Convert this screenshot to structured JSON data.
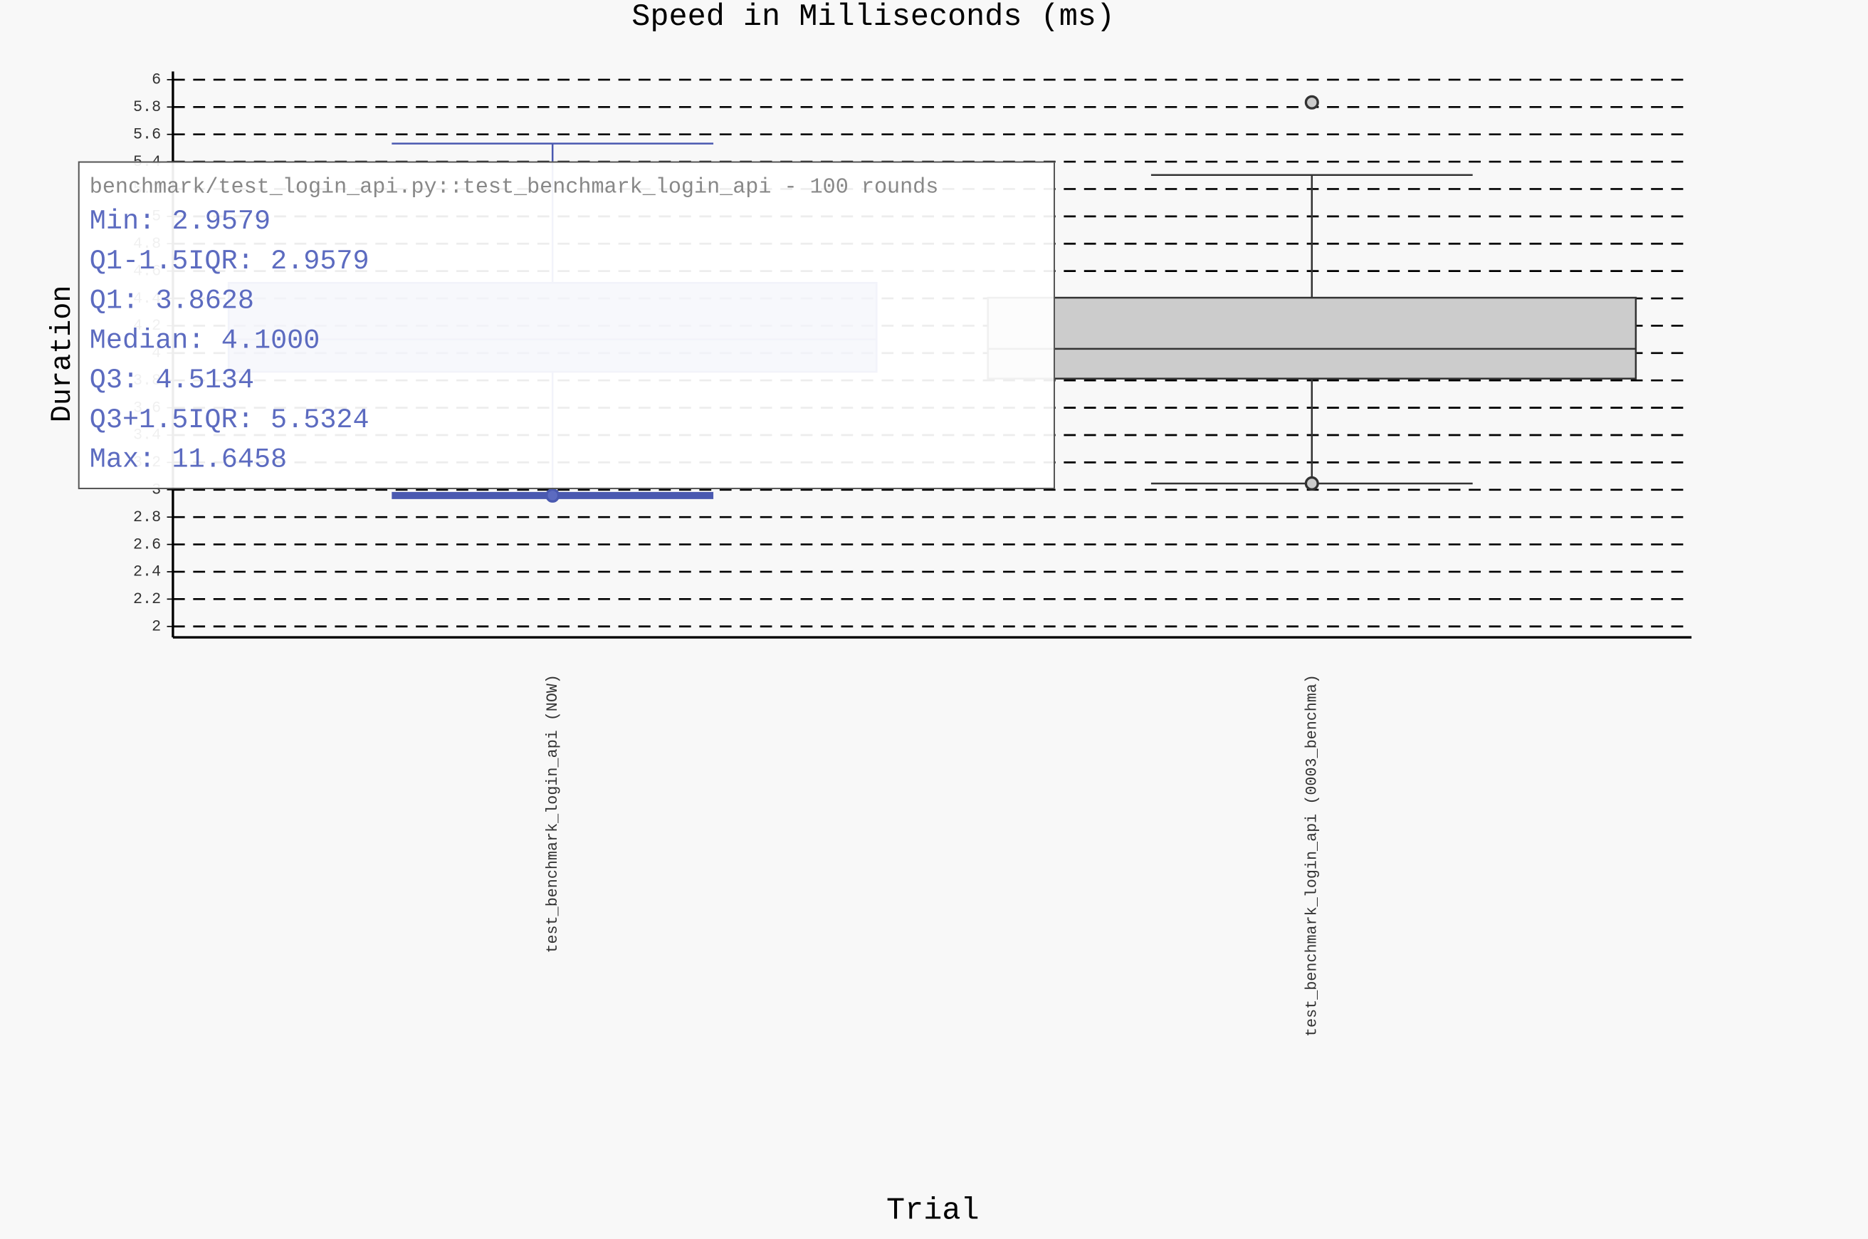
{
  "chart_data": {
    "type": "box",
    "title": "Speed in Milliseconds (ms)",
    "x_title": "Trial",
    "y_title": "Duration",
    "categories": [
      "test_benchmark_login_api (NOW)",
      "test_benchmark_login_api (0003_benchma)"
    ],
    "stat_names": [
      "Min:",
      "Q1-1.5IQR:",
      "Q1:",
      "Median:",
      "Q3:",
      "Q3+1.5IQR:",
      "Max:"
    ],
    "series": [
      {
        "name": "test_benchmark_login_api (NOW)",
        "color": "#5c6bc0",
        "values": [
          2.9579,
          2.9579,
          3.8628,
          4.1,
          4.5134,
          5.5324,
          11.6458
        ],
        "value_labels": [
          "2.9579",
          "2.9579",
          "3.8628",
          "4.1000",
          "4.5134",
          "5.5324",
          "11.6458"
        ]
      },
      {
        "name": "test_benchmark_login_api (0003_benchma)",
        "color": "#cccccc",
        "values": [
          3.046,
          3.046,
          3.813,
          4.031,
          4.405,
          5.303,
          5.834
        ]
      }
    ],
    "tooltip_title": "benchmark/test_login_api.py::test_benchmark_login_api - 100 rounds",
    "ylim": [
      1.92,
      6.06
    ],
    "yticks": [
      2,
      2.2,
      2.4,
      2.6,
      2.8,
      3,
      3.2,
      3.4,
      3.6,
      3.8,
      4,
      4.2,
      4.4,
      4.6,
      4.8,
      5,
      5.2,
      5.4,
      5.6,
      5.8,
      6
    ],
    "grid": true
  }
}
